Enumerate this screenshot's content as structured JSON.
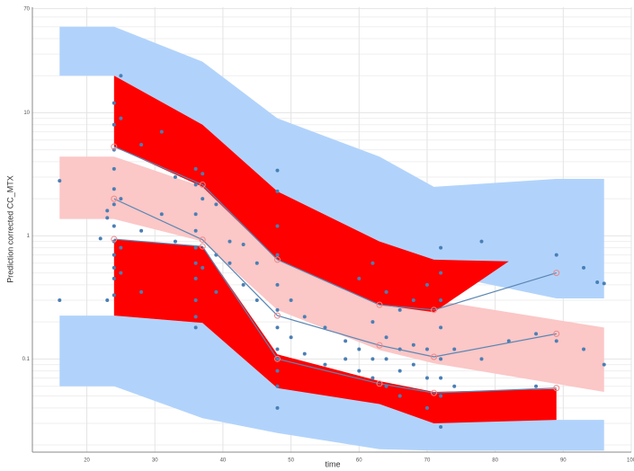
{
  "chart_data": {
    "type": "scatter",
    "x_label": "time",
    "y_label": "Prediction corrected CC_MTX",
    "xlim": [
      12,
      100
    ],
    "xticks": [
      20,
      30,
      40,
      50,
      60,
      70,
      80,
      90,
      100
    ],
    "ylim": [
      0.0175,
      72
    ],
    "yticks": [
      0.1,
      1,
      10,
      70
    ],
    "yminor_grid": [
      0.02,
      0.03,
      0.04,
      0.05,
      0.06,
      0.07,
      0.08,
      0.09,
      0.2,
      0.3,
      0.4,
      0.5,
      0.6,
      0.7,
      0.8,
      0.9,
      2,
      3,
      4,
      5,
      6,
      7,
      8,
      9,
      20,
      30,
      40,
      50,
      60
    ],
    "log_y": true,
    "grid": true,
    "bands": [
      {
        "color": "#b1d3fb",
        "x": [
          16,
          24,
          37,
          48,
          63,
          71,
          89,
          96
        ],
        "upper": [
          50,
          50,
          26,
          9,
          4.4,
          2.5,
          2.9,
          2.9
        ],
        "lower": [
          20,
          20,
          8,
          2.3,
          0.9,
          0.5,
          0.31,
          0.31
        ]
      },
      {
        "color": "#b1d3fb",
        "x": [
          16,
          24,
          37,
          48,
          63,
          71,
          89,
          96
        ],
        "upper": [
          0.225,
          0.225,
          0.196,
          0.09,
          0.06,
          0.05,
          0.032,
          0.032
        ],
        "lower": [
          0.06,
          0.06,
          0.033,
          0.025,
          0.0185,
          0.018,
          0.018,
          0.018
        ]
      },
      {
        "color": "#fbc7c7",
        "x": [
          16,
          24,
          37,
          48,
          63,
          71,
          96
        ],
        "upper": [
          4.4,
          4.4,
          2.5,
          0.76,
          0.39,
          0.3,
          0.18
        ],
        "lower": [
          1.37,
          1.37,
          0.9,
          0.25,
          0.118,
          0.092,
          0.054
        ]
      },
      {
        "color": "#ff0000",
        "x": [
          24,
          37,
          48,
          63,
          71,
          82
        ],
        "upper": [
          20,
          8,
          2.3,
          0.9,
          0.64,
          0.62
        ],
        "lower": [
          5.3,
          2.5,
          0.64,
          0.275,
          0.24,
          0.62
        ]
      },
      {
        "color": "#ff0000",
        "x": [
          24,
          37,
          48,
          63,
          71,
          89
        ],
        "upper": [
          0.94,
          0.82,
          0.109,
          0.066,
          0.054,
          0.057
        ],
        "lower": [
          0.225,
          0.196,
          0.058,
          0.043,
          0.03,
          0.032
        ]
      }
    ],
    "lines": [
      {
        "color": "#5a86b3",
        "x": [
          24,
          37,
          48,
          63,
          71,
          89
        ],
        "values": [
          5.3,
          2.6,
          0.64,
          0.275,
          0.25,
          0.5
        ]
      },
      {
        "color": "#5a86b3",
        "x": [
          24,
          37,
          48,
          63,
          71,
          89
        ],
        "values": [
          2.0,
          0.93,
          0.225,
          0.129,
          0.104,
          0.16
        ]
      },
      {
        "color": "#5a86b3",
        "x": [
          24,
          37,
          48,
          63,
          71,
          89
        ],
        "values": [
          0.94,
          0.82,
          0.1,
          0.063,
          0.053,
          0.058
        ]
      }
    ],
    "points": {
      "color": "#4a7fb5",
      "x": [
        16,
        16,
        22,
        23,
        23,
        23,
        24,
        24,
        24,
        24,
        24,
        24,
        24,
        24,
        24,
        24,
        24,
        24,
        25,
        25,
        25,
        25,
        25,
        28,
        28,
        28,
        31,
        31,
        33,
        33,
        36,
        36,
        36,
        36,
        36,
        36,
        36,
        36,
        36,
        36,
        37,
        37,
        37,
        39,
        39,
        39,
        41,
        41,
        43,
        43,
        45,
        45,
        48,
        48,
        48,
        48,
        48,
        48,
        48,
        48,
        48,
        48,
        48,
        48,
        50,
        50,
        52,
        52,
        55,
        55,
        58,
        58,
        60,
        60,
        60,
        62,
        62,
        62,
        62,
        64,
        64,
        64,
        64,
        66,
        66,
        66,
        66,
        68,
        68,
        68,
        70,
        70,
        70,
        70,
        72,
        72,
        72,
        72,
        72,
        72,
        72,
        72,
        74,
        74,
        78,
        78,
        82,
        86,
        86,
        89,
        89,
        93,
        93,
        95,
        96,
        96
      ],
      "values": [
        2.8,
        0.3,
        0.95,
        1.6,
        1.4,
        0.3,
        12,
        8,
        5,
        3.5,
        2.4,
        1.8,
        1.2,
        0.9,
        0.7,
        0.55,
        0.45,
        0.33,
        20,
        9,
        2,
        0.8,
        0.5,
        5.5,
        1.1,
        0.35,
        7,
        1.5,
        0.9,
        3,
        3.5,
        2.6,
        1.5,
        1.1,
        0.8,
        0.6,
        0.45,
        0.3,
        0.22,
        0.18,
        3.2,
        2,
        0.55,
        1.8,
        0.7,
        0.35,
        0.9,
        0.6,
        0.85,
        0.4,
        0.6,
        0.3,
        3.4,
        2.3,
        1.2,
        0.7,
        0.4,
        0.25,
        0.18,
        0.12,
        0.1,
        0.08,
        0.06,
        0.04,
        0.3,
        0.15,
        0.22,
        0.11,
        0.18,
        0.09,
        0.14,
        0.1,
        0.45,
        0.12,
        0.08,
        0.6,
        0.2,
        0.1,
        0.07,
        0.35,
        0.15,
        0.1,
        0.06,
        0.25,
        0.12,
        0.08,
        0.05,
        0.3,
        0.13,
        0.09,
        0.4,
        0.12,
        0.07,
        0.04,
        0.8,
        0.5,
        0.3,
        0.18,
        0.1,
        0.07,
        0.05,
        0.028,
        0.12,
        0.06,
        0.9,
        0.1,
        0.14,
        0.16,
        0.06,
        0.7,
        0.14,
        0.55,
        0.12,
        0.42,
        0.41,
        0.09
      ]
    }
  }
}
